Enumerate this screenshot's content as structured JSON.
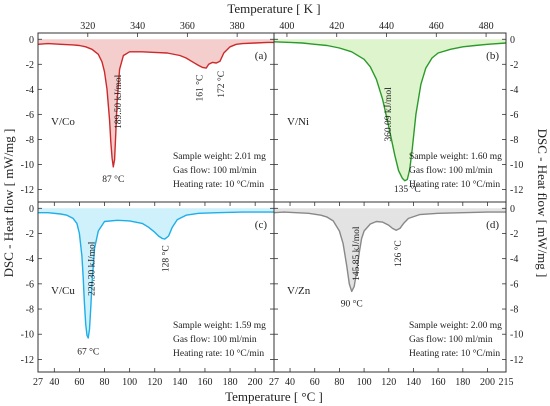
{
  "figure": {
    "top_axis_label": "Temperature [ K ]",
    "bottom_axis_label": "Temperature [ °C ]",
    "left_axis_label": "DSC - Heat flow [ mW/mg ]",
    "right_axis_label": "DSC - Heat flow [ mW/mg ]",
    "top_ticks": [
      "320",
      "340",
      "360",
      "380",
      "400",
      "420",
      "440",
      "460",
      "480"
    ],
    "bottom_ticks_left": [
      "27",
      "40",
      "60",
      "80",
      "100",
      "120",
      "140",
      "160",
      "180",
      "200"
    ],
    "bottom_ticks_right": [
      "27",
      "40",
      "60",
      "80",
      "100",
      "120",
      "140",
      "160",
      "180",
      "200",
      "215"
    ]
  },
  "chart_data": [
    {
      "type": "line",
      "panel": "(a)",
      "sample": "V/Co",
      "color": "#cc2a2a",
      "fill": "#f2c4c4",
      "xlim": [
        27,
        215
      ],
      "ylim": [
        -13,
        0.5
      ],
      "y_ticks": [
        "0",
        "-2",
        "-4",
        "-6",
        "-8",
        "-10",
        "-12"
      ],
      "x": [
        27,
        35,
        45,
        55,
        60,
        65,
        70,
        75,
        78,
        80,
        82,
        84,
        85,
        86,
        87,
        88,
        89,
        90,
        92,
        95,
        100,
        110,
        120,
        130,
        140,
        145,
        150,
        155,
        158,
        161,
        163,
        166,
        169,
        172,
        175,
        180,
        185,
        190,
        200,
        210,
        215
      ],
      "y": [
        -0.4,
        -0.35,
        -0.4,
        -0.45,
        -0.5,
        -0.6,
        -0.8,
        -1.2,
        -1.8,
        -2.6,
        -4.0,
        -6.5,
        -8.2,
        -9.5,
        -10.2,
        -9.6,
        -7.5,
        -5.0,
        -2.4,
        -1.3,
        -1.0,
        -1.0,
        -1.05,
        -1.1,
        -1.3,
        -1.5,
        -1.8,
        -2.1,
        -2.25,
        -2.3,
        -2.0,
        -1.85,
        -1.9,
        -1.75,
        -1.1,
        -0.6,
        -0.4,
        -0.35,
        -0.3,
        -0.25,
        -0.25
      ],
      "annotations": [
        "189.50 kJ/mol",
        "87 °C",
        "161 °C",
        "172 °C"
      ],
      "info": [
        "Sample weight: 2.01 mg",
        "Gas flow: 100 ml/min",
        "Heating rate: 10 °C/min"
      ]
    },
    {
      "type": "line",
      "panel": "(b)",
      "sample": "V/Ni",
      "color": "#2a9a2a",
      "fill": "#d8f2c4",
      "xlim": [
        27,
        215
      ],
      "ylim": [
        -13,
        0.5
      ],
      "y_ticks": [
        "0",
        "-2",
        "-4",
        "-6",
        "-8",
        "-10",
        "-12"
      ],
      "x": [
        27,
        40,
        50,
        60,
        70,
        80,
        90,
        100,
        105,
        110,
        115,
        120,
        125,
        128,
        131,
        133,
        135,
        137,
        139,
        142,
        146,
        150,
        155,
        160,
        170,
        180,
        190,
        200,
        215
      ],
      "y": [
        -0.2,
        -0.25,
        -0.3,
        -0.4,
        -0.5,
        -0.7,
        -1.0,
        -1.6,
        -2.2,
        -3.2,
        -4.8,
        -7.0,
        -9.3,
        -10.5,
        -11.1,
        -11.3,
        -11.2,
        -10.4,
        -8.8,
        -6.0,
        -3.6,
        -2.3,
        -1.5,
        -1.1,
        -0.8,
        -0.6,
        -0.5,
        -0.4,
        -0.3
      ],
      "annotations": [
        "360.09 kJ/mol",
        "135 °C"
      ],
      "info": [
        "Sample weight: 1.60 mg",
        "Gas flow: 100 ml/min",
        "Heating rate: 10 °C/min"
      ]
    },
    {
      "type": "line",
      "panel": "(c)",
      "sample": "V/Cu",
      "color": "#1eaee8",
      "fill": "#c6eefb",
      "xlim": [
        27,
        215
      ],
      "ylim": [
        -13,
        0.5
      ],
      "y_ticks": [
        "0",
        "-2",
        "-4",
        "-6",
        "-8",
        "-10",
        "-12"
      ],
      "x": [
        27,
        35,
        45,
        50,
        55,
        58,
        60,
        62,
        63,
        64,
        65,
        66,
        67,
        68,
        69,
        70,
        72,
        75,
        80,
        90,
        100,
        110,
        115,
        120,
        123,
        126,
        128,
        131,
        134,
        138,
        145,
        155,
        170,
        190,
        215
      ],
      "y": [
        -0.35,
        -0.35,
        -0.45,
        -0.55,
        -0.8,
        -1.2,
        -2.0,
        -3.8,
        -5.5,
        -7.5,
        -9.2,
        -10.1,
        -10.3,
        -9.6,
        -8.0,
        -6.0,
        -3.2,
        -1.8,
        -1.05,
        -0.95,
        -1.0,
        -1.2,
        -1.5,
        -1.9,
        -2.2,
        -2.4,
        -2.45,
        -2.2,
        -1.5,
        -0.9,
        -0.55,
        -0.4,
        -0.35,
        -0.3,
        -0.3
      ],
      "annotations": [
        "220.30 kJ/mol",
        "67 °C",
        "128 °C"
      ],
      "info": [
        "Sample weight: 1.59 mg",
        "Gas flow: 100 ml/min",
        "Heating rate: 10 °C/min"
      ]
    },
    {
      "type": "line",
      "panel": "(d)",
      "sample": "V/Zn",
      "color": "#888888",
      "fill": "#dedede",
      "xlim": [
        27,
        215
      ],
      "ylim": [
        -13,
        0.5
      ],
      "y_ticks": [
        "0",
        "-2",
        "-4",
        "-6",
        "-8",
        "-10",
        "-12"
      ],
      "x": [
        27,
        35,
        45,
        55,
        65,
        70,
        75,
        80,
        83,
        86,
        88,
        90,
        92,
        94,
        96,
        98,
        100,
        105,
        110,
        115,
        120,
        123,
        126,
        129,
        132,
        136,
        145,
        160,
        180,
        200,
        215
      ],
      "y": [
        -0.35,
        -0.3,
        -0.35,
        -0.4,
        -0.55,
        -0.7,
        -1.0,
        -1.8,
        -2.8,
        -4.6,
        -6.0,
        -6.6,
        -6.2,
        -5.0,
        -3.6,
        -2.4,
        -1.8,
        -1.25,
        -1.05,
        -1.1,
        -1.35,
        -1.6,
        -1.75,
        -1.6,
        -1.2,
        -0.8,
        -0.5,
        -0.4,
        -0.35,
        -0.3,
        -0.3
      ],
      "annotations": [
        "145.85 kJ/mol",
        "90 °C",
        "126 °C"
      ],
      "info": [
        "Sample weight: 2.00 mg",
        "Gas flow: 100 ml/min",
        "Heating rate: 10 °C/min"
      ]
    }
  ]
}
